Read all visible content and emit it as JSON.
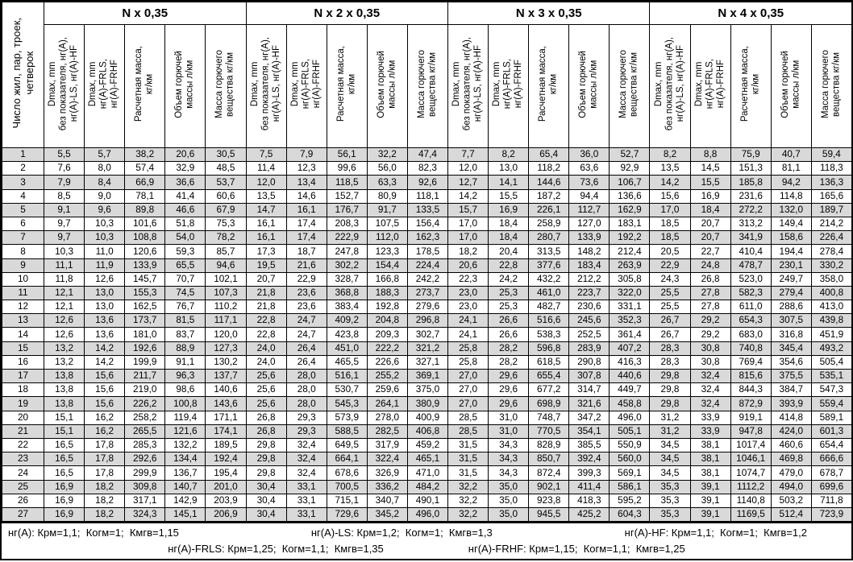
{
  "table": {
    "row_col_header": "Число жил, пар, троек,\nчетверок",
    "group_labels": [
      "N x 0,35",
      "N x 2 x 0,35",
      "N x 3 x 0,35",
      "N x 4 x 0,35"
    ],
    "sub_headers": [
      "Dmax, mm\nбез показателя, нг(A),\nнг(A)-LS, нг(A)-HF",
      "Dmax, mm\nнг(A)-FRLS,\nнг(A)-FRHF",
      "Расчетная масса,\nкг/км",
      "Объем горючей\nмассы л/км",
      "Масса горючего\nвещества кг/км"
    ],
    "rows": [
      {
        "n": "1",
        "v": [
          "5,5",
          "5,7",
          "38,2",
          "20,6",
          "30,5",
          "7,5",
          "7,9",
          "56,1",
          "32,2",
          "47,4",
          "7,7",
          "8,2",
          "65,4",
          "36,0",
          "52,7",
          "8,2",
          "8,8",
          "75,9",
          "40,7",
          "59,4"
        ]
      },
      {
        "n": "2",
        "v": [
          "7,6",
          "8,0",
          "57,4",
          "32,9",
          "48,5",
          "11,4",
          "12,3",
          "99,6",
          "56,0",
          "82,3",
          "12,0",
          "13,0",
          "118,2",
          "63,6",
          "92,9",
          "13,5",
          "14,5",
          "151,3",
          "81,1",
          "118,3"
        ]
      },
      {
        "n": "3",
        "v": [
          "7,9",
          "8,4",
          "66,9",
          "36,6",
          "53,7",
          "12,0",
          "13,4",
          "118,5",
          "63,3",
          "92,6",
          "12,7",
          "14,1",
          "144,6",
          "73,6",
          "106,7",
          "14,2",
          "15,5",
          "185,8",
          "94,2",
          "136,3"
        ]
      },
      {
        "n": "4",
        "v": [
          "8,5",
          "9,0",
          "78,1",
          "41,4",
          "60,6",
          "13,5",
          "14,6",
          "152,7",
          "80,9",
          "118,1",
          "14,2",
          "15,5",
          "187,2",
          "94,4",
          "136,6",
          "15,6",
          "16,9",
          "231,6",
          "114,8",
          "165,6"
        ]
      },
      {
        "n": "5",
        "v": [
          "9,1",
          "9,6",
          "89,8",
          "46,6",
          "67,9",
          "14,7",
          "16,1",
          "176,7",
          "91,7",
          "133,5",
          "15,7",
          "16,9",
          "226,1",
          "112,7",
          "162,9",
          "17,0",
          "18,4",
          "272,2",
          "132,0",
          "189,7"
        ]
      },
      {
        "n": "6",
        "v": [
          "9,7",
          "10,3",
          "101,6",
          "51,8",
          "75,3",
          "16,1",
          "17,4",
          "208,3",
          "107,5",
          "156,4",
          "17,0",
          "18,4",
          "258,9",
          "127,0",
          "183,1",
          "18,5",
          "20,7",
          "313,2",
          "149,4",
          "214,2"
        ]
      },
      {
        "n": "7",
        "v": [
          "9,7",
          "10,3",
          "108,8",
          "54,0",
          "78,2",
          "16,1",
          "17,4",
          "222,9",
          "112,0",
          "162,3",
          "17,0",
          "18,4",
          "280,7",
          "133,9",
          "192,2",
          "18,5",
          "20,7",
          "341,9",
          "158,6",
          "226,4"
        ]
      },
      {
        "n": "8",
        "v": [
          "10,3",
          "11,0",
          "120,6",
          "59,3",
          "85,7",
          "17,3",
          "18,7",
          "247,8",
          "123,3",
          "178,5",
          "18,2",
          "20,4",
          "313,5",
          "148,2",
          "212,4",
          "20,5",
          "22,7",
          "410,4",
          "194,4",
          "278,4"
        ]
      },
      {
        "n": "9",
        "v": [
          "11,1",
          "11,9",
          "133,9",
          "65,5",
          "94,6",
          "19,5",
          "21,6",
          "302,2",
          "154,4",
          "224,4",
          "20,6",
          "22,8",
          "377,6",
          "183,4",
          "263,9",
          "22,9",
          "24,8",
          "478,7",
          "230,1",
          "330,2"
        ]
      },
      {
        "n": "10",
        "v": [
          "11,8",
          "12,6",
          "145,7",
          "70,7",
          "102,1",
          "20,7",
          "22,9",
          "328,7",
          "166,8",
          "242,2",
          "22,3",
          "24,2",
          "432,2",
          "212,2",
          "305,8",
          "24,3",
          "26,8",
          "523,0",
          "249,7",
          "358,0"
        ]
      },
      {
        "n": "11",
        "v": [
          "12,1",
          "13,0",
          "155,3",
          "74,5",
          "107,3",
          "21,8",
          "23,6",
          "368,8",
          "188,3",
          "273,7",
          "23,0",
          "25,3",
          "461,0",
          "223,7",
          "322,0",
          "25,5",
          "27,8",
          "582,3",
          "279,4",
          "400,8"
        ]
      },
      {
        "n": "12",
        "v": [
          "12,1",
          "13,0",
          "162,5",
          "76,7",
          "110,2",
          "21,8",
          "23,6",
          "383,4",
          "192,8",
          "279,6",
          "23,0",
          "25,3",
          "482,7",
          "230,6",
          "331,1",
          "25,5",
          "27,8",
          "611,0",
          "288,6",
          "413,0"
        ]
      },
      {
        "n": "13",
        "v": [
          "12,6",
          "13,6",
          "173,7",
          "81,5",
          "117,1",
          "22,8",
          "24,7",
          "409,2",
          "204,8",
          "296,8",
          "24,1",
          "26,6",
          "516,6",
          "245,6",
          "352,3",
          "26,7",
          "29,2",
          "654,3",
          "307,5",
          "439,8"
        ]
      },
      {
        "n": "14",
        "v": [
          "12,6",
          "13,6",
          "181,0",
          "83,7",
          "120,0",
          "22,8",
          "24,7",
          "423,8",
          "209,3",
          "302,7",
          "24,1",
          "26,6",
          "538,3",
          "252,5",
          "361,4",
          "26,7",
          "29,2",
          "683,0",
          "316,8",
          "451,9"
        ]
      },
      {
        "n": "15",
        "v": [
          "13,2",
          "14,2",
          "192,6",
          "88,9",
          "127,3",
          "24,0",
          "26,4",
          "451,0",
          "222,2",
          "321,2",
          "25,8",
          "28,2",
          "596,8",
          "283,9",
          "407,2",
          "28,3",
          "30,8",
          "740,8",
          "345,4",
          "493,2"
        ]
      },
      {
        "n": "16",
        "v": [
          "13,2",
          "14,2",
          "199,9",
          "91,1",
          "130,2",
          "24,0",
          "26,4",
          "465,5",
          "226,6",
          "327,1",
          "25,8",
          "28,2",
          "618,5",
          "290,8",
          "416,3",
          "28,3",
          "30,8",
          "769,4",
          "354,6",
          "505,4"
        ]
      },
      {
        "n": "17",
        "v": [
          "13,8",
          "15,6",
          "211,7",
          "96,3",
          "137,7",
          "25,6",
          "28,0",
          "516,1",
          "255,2",
          "369,1",
          "27,0",
          "29,6",
          "655,4",
          "307,8",
          "440,6",
          "29,8",
          "32,4",
          "815,6",
          "375,5",
          "535,1"
        ]
      },
      {
        "n": "18",
        "v": [
          "13,8",
          "15,6",
          "219,0",
          "98,6",
          "140,6",
          "25,6",
          "28,0",
          "530,7",
          "259,6",
          "375,0",
          "27,0",
          "29,6",
          "677,2",
          "314,7",
          "449,7",
          "29,8",
          "32,4",
          "844,3",
          "384,7",
          "547,3"
        ]
      },
      {
        "n": "19",
        "v": [
          "13,8",
          "15,6",
          "226,2",
          "100,8",
          "143,6",
          "25,6",
          "28,0",
          "545,3",
          "264,1",
          "380,9",
          "27,0",
          "29,6",
          "698,9",
          "321,6",
          "458,8",
          "29,8",
          "32,4",
          "872,9",
          "393,9",
          "559,4"
        ]
      },
      {
        "n": "20",
        "v": [
          "15,1",
          "16,2",
          "258,2",
          "119,4",
          "171,1",
          "26,8",
          "29,3",
          "573,9",
          "278,0",
          "400,9",
          "28,5",
          "31,0",
          "748,7",
          "347,2",
          "496,0",
          "31,2",
          "33,9",
          "919,1",
          "414,8",
          "589,1"
        ]
      },
      {
        "n": "21",
        "v": [
          "15,1",
          "16,2",
          "265,5",
          "121,6",
          "174,1",
          "26,8",
          "29,3",
          "588,5",
          "282,5",
          "406,8",
          "28,5",
          "31,0",
          "770,5",
          "354,1",
          "505,1",
          "31,2",
          "33,9",
          "947,8",
          "424,0",
          "601,3"
        ]
      },
      {
        "n": "22",
        "v": [
          "16,5",
          "17,8",
          "285,3",
          "132,2",
          "189,5",
          "29,8",
          "32,4",
          "649,5",
          "317,9",
          "459,2",
          "31,5",
          "34,3",
          "828,9",
          "385,5",
          "550,9",
          "34,5",
          "38,1",
          "1017,4",
          "460,6",
          "654,4"
        ]
      },
      {
        "n": "23",
        "v": [
          "16,5",
          "17,8",
          "292,6",
          "134,4",
          "192,4",
          "29,8",
          "32,4",
          "664,1",
          "322,4",
          "465,1",
          "31,5",
          "34,3",
          "850,7",
          "392,4",
          "560,0",
          "34,5",
          "38,1",
          "1046,1",
          "469,8",
          "666,6"
        ]
      },
      {
        "n": "24",
        "v": [
          "16,5",
          "17,8",
          "299,9",
          "136,7",
          "195,4",
          "29,8",
          "32,4",
          "678,6",
          "326,9",
          "471,0",
          "31,5",
          "34,3",
          "872,4",
          "399,3",
          "569,1",
          "34,5",
          "38,1",
          "1074,7",
          "479,0",
          "678,7"
        ]
      },
      {
        "n": "25",
        "v": [
          "16,9",
          "18,2",
          "309,8",
          "140,7",
          "201,0",
          "30,4",
          "33,1",
          "700,5",
          "336,2",
          "484,2",
          "32,2",
          "35,0",
          "902,1",
          "411,4",
          "586,1",
          "35,3",
          "39,1",
          "1112,2",
          "494,0",
          "699,6"
        ]
      },
      {
        "n": "26",
        "v": [
          "16,9",
          "18,2",
          "317,1",
          "142,9",
          "203,9",
          "30,4",
          "33,1",
          "715,1",
          "340,7",
          "490,1",
          "32,2",
          "35,0",
          "923,8",
          "418,3",
          "595,2",
          "35,3",
          "39,1",
          "1140,8",
          "503,2",
          "711,8"
        ]
      },
      {
        "n": "27",
        "v": [
          "16,9",
          "18,2",
          "324,3",
          "145,1",
          "206,9",
          "30,4",
          "33,1",
          "729,6",
          "345,2",
          "496,0",
          "32,2",
          "35,0",
          "945,5",
          "425,2",
          "604,3",
          "35,3",
          "39,1",
          "1169,5",
          "512,4",
          "723,9"
        ]
      }
    ]
  },
  "footer": {
    "line1": [
      "нг(A): Крм=1,1;  Когм=1;  Кмгв=1,15",
      "нг(A)-LS: Крм=1,2;  Когм=1;  Кмгв=1,3",
      "нг(A)-HF: Крм=1,1;  Когм=1;  Кмгв=1,2"
    ],
    "line2": [
      "нг(A)-FRLS: Крм=1,25;  Когм=1,1;  Кмгв=1,35",
      "нг(A)-FRHF: Крм=1,15;  Когм=1,1;  Кмгв=1,25"
    ]
  }
}
